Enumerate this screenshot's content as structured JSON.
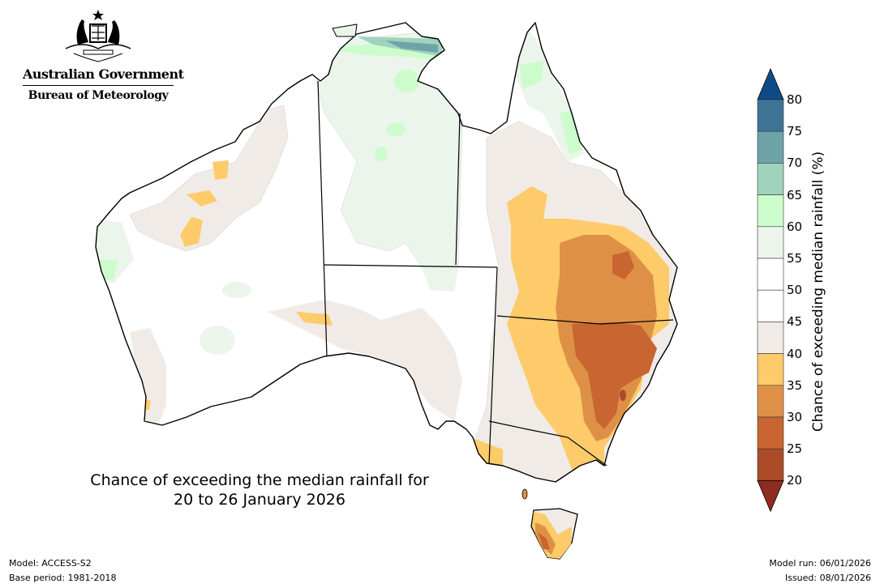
{
  "header": {
    "org_line1": "Australian Government",
    "org_line2": "Bureau of Meteorology",
    "emblem": "commonwealth-coat-of-arms-icon"
  },
  "map": {
    "title_line1": "Chance of exceeding the median rainfall for",
    "title_line2": "20 to 26 January 2026",
    "region": "Australia"
  },
  "footer": {
    "model": "Model: ACCESS-S2",
    "base_period": "Base period: 1981-2018",
    "model_run": "Model run: 06/01/2026",
    "issued": "Issued: 08/01/2026"
  },
  "colorbar": {
    "label": "Chance of exceeding median rainfall (%)",
    "ticks": [
      "80",
      "75",
      "70",
      "65",
      "60",
      "55",
      "50",
      "45",
      "40",
      "35",
      "30",
      "25",
      "20"
    ],
    "bins": [
      {
        "range": ">80",
        "color": "#0f4c87"
      },
      {
        "range": "75-80",
        "color": "#3d7496"
      },
      {
        "range": "70-75",
        "color": "#6ea4a8"
      },
      {
        "range": "65-70",
        "color": "#9fd3bd"
      },
      {
        "range": "60-65",
        "color": "#ccfccc"
      },
      {
        "range": "55-60",
        "color": "#ebf5eb"
      },
      {
        "range": "50-55",
        "color": "#ffffff"
      },
      {
        "range": "45-50",
        "color": "#ffffff"
      },
      {
        "range": "40-45",
        "color": "#f0ebe6"
      },
      {
        "range": "35-40",
        "color": "#fdcb69"
      },
      {
        "range": "30-35",
        "color": "#de9146"
      },
      {
        "range": "25-30",
        "color": "#c96531"
      },
      {
        "range": "20-25",
        "color": "#ac4b27"
      },
      {
        "range": "<20",
        "color": "#8f2b1f"
      }
    ]
  }
}
